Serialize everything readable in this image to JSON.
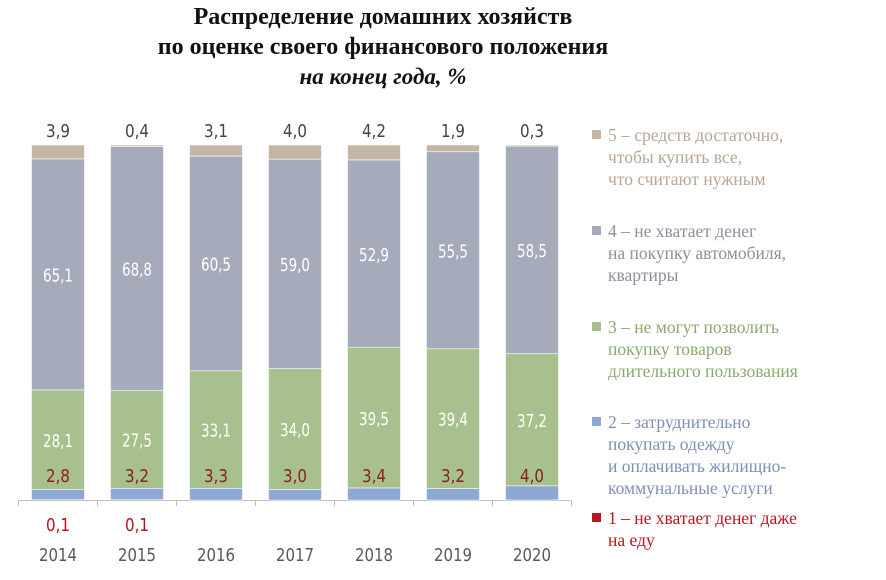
{
  "title": {
    "line1": "Распределение домашних  хозяйств",
    "line2": "по оценке своего финансового положения",
    "line3": "на конец года, %"
  },
  "legend": {
    "items": [
      {
        "text": "5 – средств достаточно,\nчтобы купить все,\nчто считают нужным",
        "color": "#C4B5A5",
        "text_color": "#B7A696"
      },
      {
        "text": "4 – не хватает денег\nна покупку автомобиля,\nквартиры",
        "color": "#A6ABBC",
        "text_color": "#8C8F9E"
      },
      {
        "text": "3 – не могут позволить\nпокупку товаров\nдлительного пользования",
        "color": "#A8C08D",
        "text_color": "#8AAA6C"
      },
      {
        "text": "2 – затруднительно\nпокупать одежду\nи оплачивать жилищно-\nкоммунальные услуги",
        "color": "#8EA8D6",
        "text_color": "#7E8FB8"
      },
      {
        "text": "1 – не хватает денег даже\nна еду",
        "color": "#B8161C",
        "text_color": "#B8161C"
      }
    ]
  },
  "chart_data": {
    "type": "bar",
    "stacked": true,
    "categories": [
      "2014",
      "2015",
      "2016",
      "2017",
      "2018",
      "2019",
      "2020"
    ],
    "series": [
      {
        "name": "1 – не хватает денег даже на еду",
        "values": [
          0.1,
          0.1,
          null,
          null,
          null,
          null,
          null
        ],
        "color": "#B8161C",
        "label_color": "#B8161C"
      },
      {
        "name": "2 – затруднительно покупать одежду и оплачивать жилищно-коммунальные услуги",
        "values": [
          2.8,
          3.2,
          3.3,
          3.0,
          3.4,
          3.2,
          4.0
        ],
        "color": "#8EA8D6",
        "label_color": "#8A1E1E"
      },
      {
        "name": "3 – не могут позволить покупку товаров длительного пользования",
        "values": [
          28.1,
          27.5,
          33.1,
          34.0,
          39.5,
          39.4,
          37.2
        ],
        "color": "#A8C08D",
        "label_color": "#FFFFFF"
      },
      {
        "name": "4 – не хватает денег на покупку автомобиля, квартиры",
        "values": [
          65.1,
          68.8,
          60.5,
          59.0,
          52.9,
          55.5,
          58.5
        ],
        "color": "#A6ABBC",
        "label_color": "#FFFFFF"
      },
      {
        "name": "5 – средств достаточно, чтобы купить все, что считают нужным",
        "values": [
          3.9,
          0.4,
          3.1,
          4.0,
          4.2,
          1.9,
          0.3
        ],
        "color": "#C4B5A5",
        "label_color": "#444444"
      }
    ],
    "ylim": [
      0,
      100
    ],
    "grid": false,
    "legend_position": "right",
    "xlabel": "",
    "ylabel": ""
  }
}
